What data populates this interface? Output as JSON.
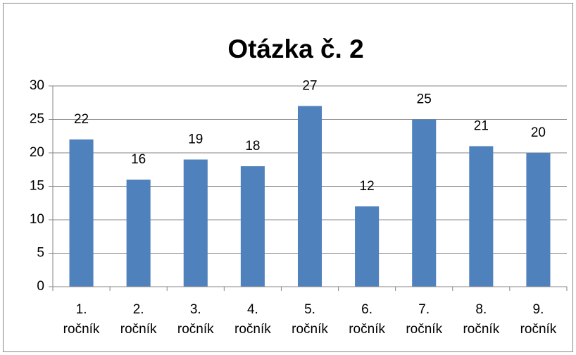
{
  "chart_data": {
    "type": "bar",
    "title": "Otázka č. 2",
    "categories": [
      "1. ročník",
      "2. ročník",
      "3. ročník",
      "4. ročník",
      "5. ročník",
      "6. ročník",
      "7. ročník",
      "8. ročník",
      "9. ročník"
    ],
    "values": [
      22,
      16,
      19,
      18,
      27,
      12,
      25,
      21,
      20
    ],
    "color": "#4f81bd",
    "ylim": [
      0,
      30
    ],
    "yticks": [
      0,
      5,
      10,
      15,
      20,
      25,
      30
    ],
    "grid": true
  }
}
